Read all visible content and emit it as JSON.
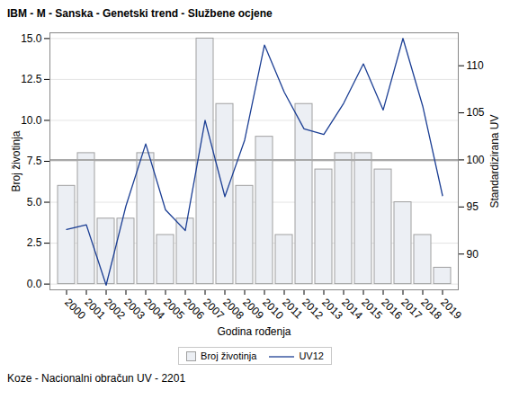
{
  "chart_data": {
    "type": "bar",
    "title": "IBM - M - Sanska - Genetski trend - Službene ocjene",
    "caption": "Koze - Nacionalni obračun UV - 2201",
    "xlabel": "Godina rođenja",
    "ylabel": "Broj životinja",
    "y2label": "Standardizirana UV",
    "categories": [
      "2000",
      "2001",
      "2002",
      "2003",
      "2004",
      "2005",
      "2006",
      "2007",
      "2008",
      "2009",
      "2010",
      "2011",
      "2012",
      "2013",
      "2014",
      "2015",
      "2016",
      "2017",
      "2018",
      "2019"
    ],
    "series": [
      {
        "name": "Broj životinja",
        "type": "bar",
        "color": "#eceff4",
        "values": [
          6,
          8,
          4,
          4,
          8,
          3,
          4,
          15,
          11,
          6,
          9,
          3,
          11,
          7,
          8,
          8,
          7,
          5,
          3,
          1
        ]
      },
      {
        "name": "UV12",
        "type": "line",
        "color": "#1c3f94",
        "axis": "y2",
        "values": [
          92.6,
          93.1,
          86.7,
          95.1,
          101.7,
          94.7,
          92.5,
          104.2,
          96.1,
          102.1,
          112.2,
          107.2,
          103.3,
          102.7,
          106.0,
          110.2,
          105.3,
          112.9,
          105.7,
          96.2
        ]
      }
    ],
    "ylim": [
      -0.35,
      15.35
    ],
    "yticks": [
      {
        "value": 0,
        "label": "0.0"
      },
      {
        "value": 2.5,
        "label": "2.5"
      },
      {
        "value": 5,
        "label": "5.0"
      },
      {
        "value": 7.5,
        "label": "7.5"
      },
      {
        "value": 10,
        "label": "10.0"
      },
      {
        "value": 12.5,
        "label": "12.5"
      },
      {
        "value": 15,
        "label": "15.0"
      }
    ],
    "y2lim": [
      86.2,
      113.5
    ],
    "y2ticks": [
      90,
      95,
      100,
      105,
      110
    ],
    "reference_lines": [
      {
        "axis": "y2",
        "value": 100
      }
    ],
    "grid": true,
    "legend": "bottom"
  }
}
